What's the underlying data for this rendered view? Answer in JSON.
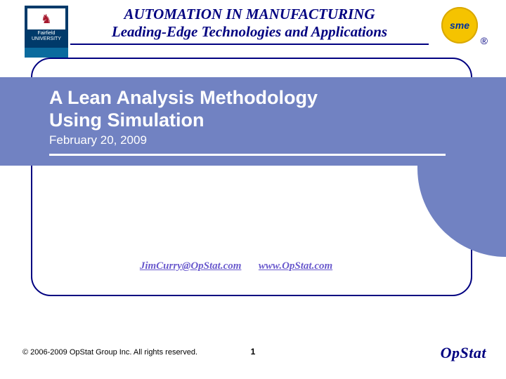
{
  "header": {
    "line1": "AUTOMATION IN MANUFACTURING",
    "line2": "Leading-Edge Technologies and Applications"
  },
  "logo_left": {
    "org_line1": "Fairfield",
    "org_line2": "UNIVERSITY"
  },
  "logo_right": {
    "text": "sme",
    "registered": "®"
  },
  "title": {
    "line1": "A Lean Analysis Methodology",
    "line2": "Using Simulation",
    "date": "February 20, 2009"
  },
  "links": {
    "email": "JimCurry@OpStat.com",
    "site": "www.OpStat.com"
  },
  "footer": {
    "copyright": "© 2006-2009 OpStat Group Inc.  All rights reserved.",
    "page": "1",
    "brand": "OpStat"
  },
  "colors": {
    "header_text": "#000080",
    "band_bg": "#7182c2",
    "band_text": "#ffffff",
    "link": "#6a5acd",
    "border": "#000080",
    "brand": "#000080",
    "gold": "#f5c300"
  }
}
